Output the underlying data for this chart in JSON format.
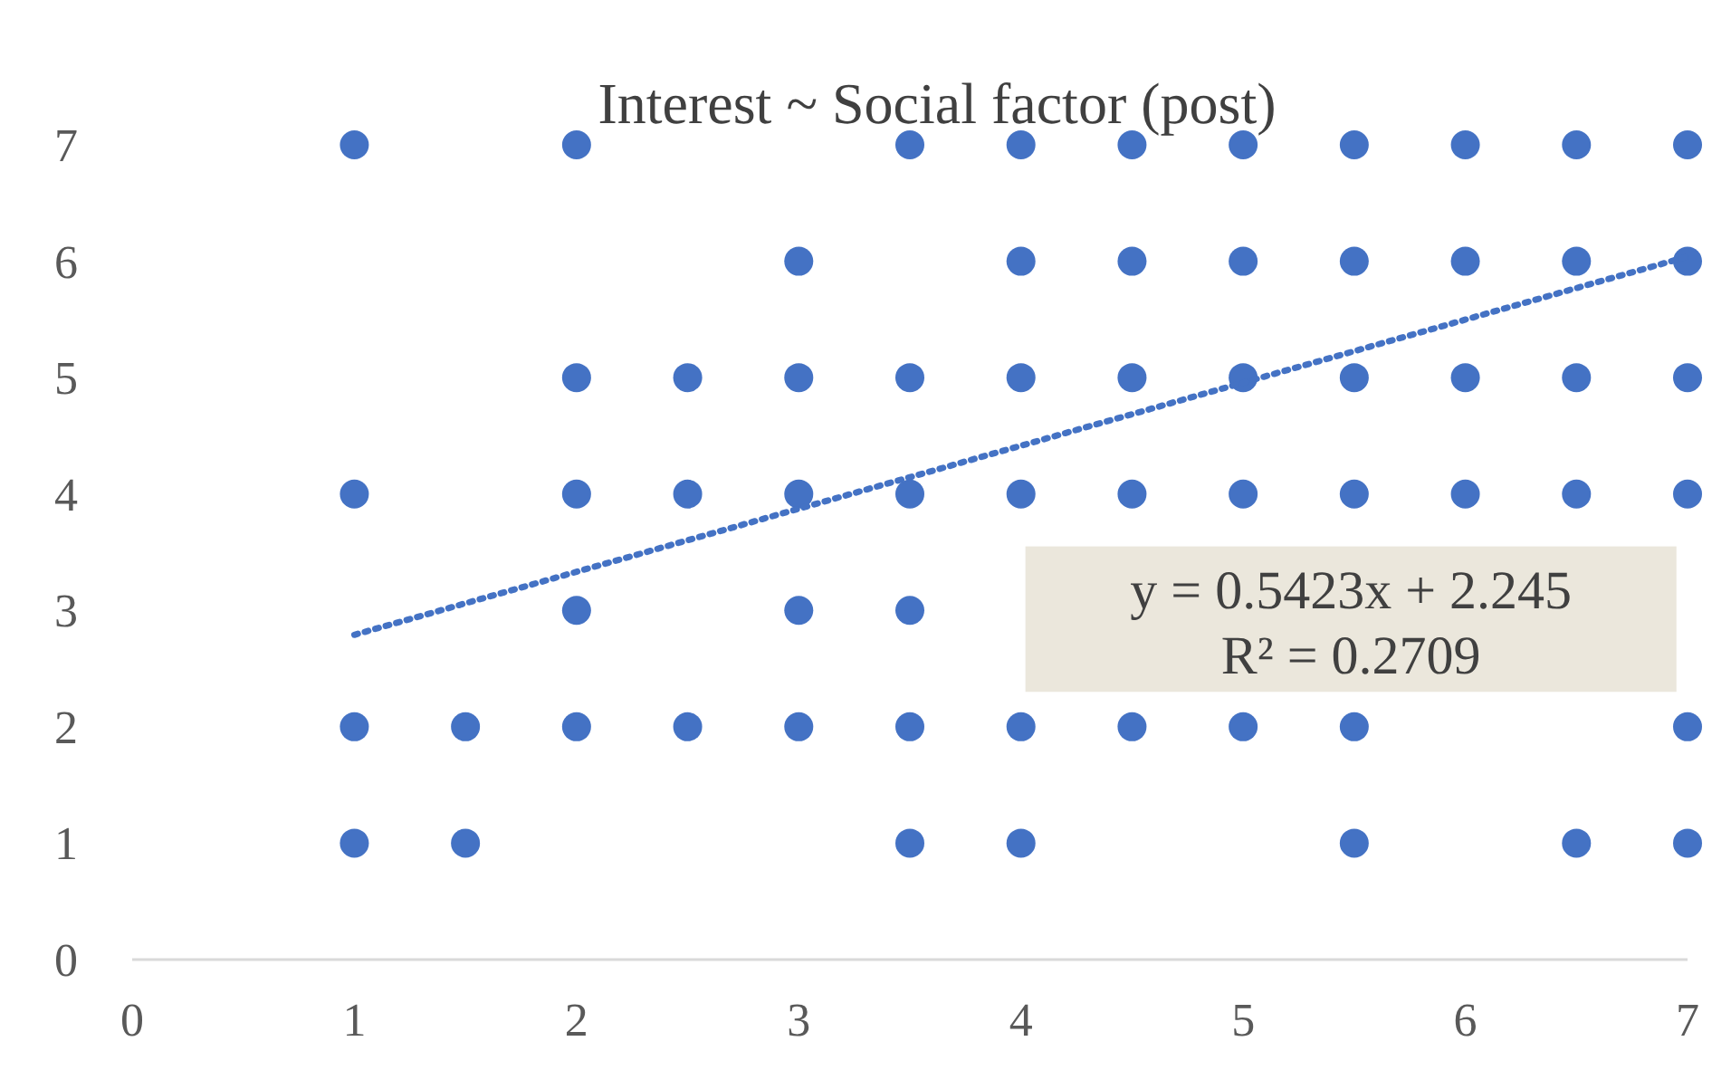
{
  "chart_data": {
    "type": "scatter",
    "title": "Interest ~ Social factor (post)",
    "xlim": [
      0,
      7
    ],
    "xticks": [
      0,
      1,
      2,
      3,
      4,
      5,
      6,
      7
    ],
    "ylim": [
      0,
      7
    ],
    "yticks": [
      0,
      1,
      2,
      3,
      4,
      5,
      6,
      7
    ],
    "grid": false,
    "marker": "circle",
    "series": [
      {
        "color": "#4472c4",
        "x": [
          1,
          2,
          3.5,
          4,
          4.5,
          5,
          5.5,
          6,
          6.5,
          7,
          3,
          4,
          4.5,
          5,
          5.5,
          6,
          6.5,
          7,
          2,
          2.5,
          3,
          3.5,
          4,
          4.5,
          5,
          5.5,
          6,
          6.5,
          7,
          1,
          2,
          2.5,
          3,
          3.5,
          4,
          4.5,
          5,
          5.5,
          6,
          6.5,
          7,
          2,
          3,
          3.5,
          1,
          1.5,
          2,
          2.5,
          3,
          3.5,
          4,
          4.5,
          5,
          5.5,
          7,
          1,
          1.5,
          3.5,
          4,
          5.5,
          6.5,
          7
        ],
        "values": [
          7,
          7,
          7,
          7,
          7,
          7,
          7,
          7,
          7,
          7,
          6,
          6,
          6,
          6,
          6,
          6,
          6,
          6,
          5,
          5,
          5,
          5,
          5,
          5,
          5,
          5,
          5,
          5,
          5,
          4,
          4,
          4,
          4,
          4,
          4,
          4,
          4,
          4,
          4,
          4,
          4,
          3,
          3,
          3,
          2,
          2,
          2,
          2,
          2,
          2,
          2,
          2,
          2,
          2,
          2,
          1,
          1,
          1,
          1,
          1,
          1,
          1
        ]
      },
      {
        "type": "line",
        "color": "#4472c4",
        "line_style": "dotted",
        "marker": "none",
        "x": [
          1,
          7
        ],
        "values": [
          2.79,
          6.04
        ]
      }
    ],
    "annotations": [
      "y = 0.5423x + 2.245",
      "R² = 0.2709"
    ]
  }
}
